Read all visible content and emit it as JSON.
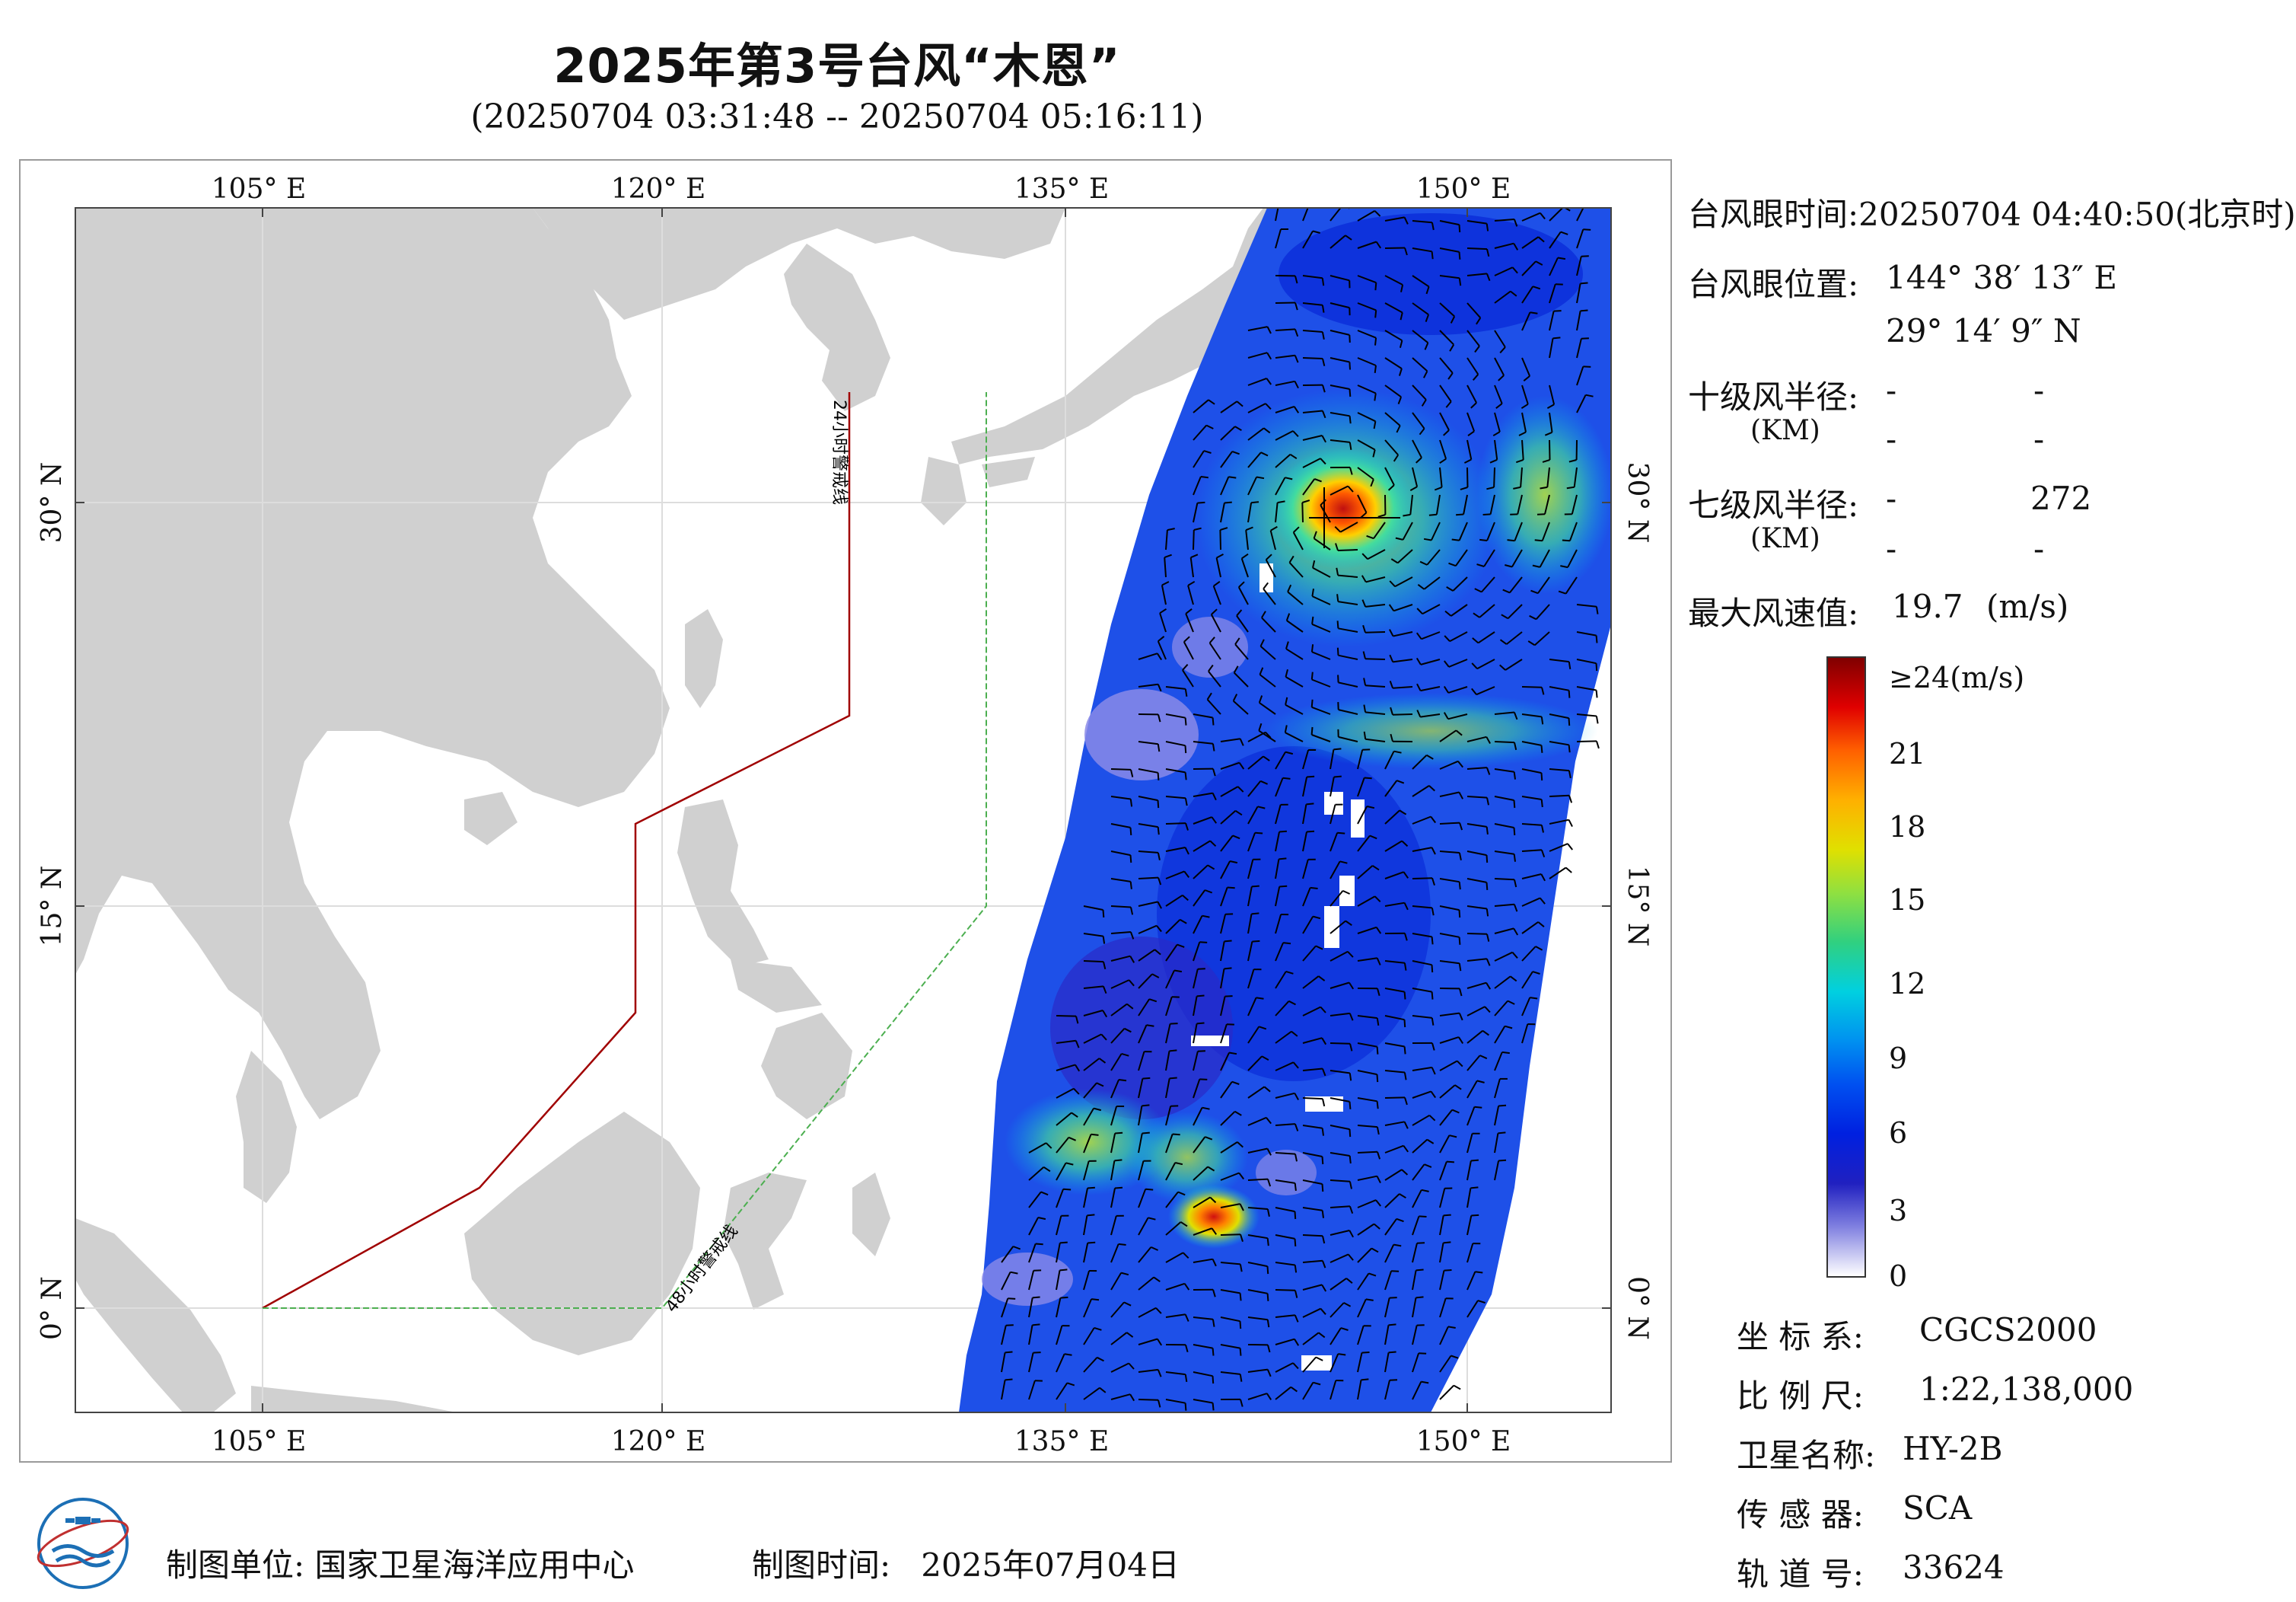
{
  "header": {
    "title": "2025年第3号台风“木恩”",
    "subtitle": "(20250704 03:31:48 -- 20250704 05:16:11)"
  },
  "map": {
    "lon_labels": [
      "105° E",
      "120° E",
      "135° E",
      "150° E"
    ],
    "lat_labels": [
      "30° N",
      "15° N",
      "0° N"
    ],
    "warning_24h_label": "24小时警戒线",
    "warning_48h_label": "48小时警戒线",
    "colors": {
      "land": "#d0d0d0",
      "sea": "#ffffff",
      "warning_24h": "#a00000",
      "warning_48h": "#4caf50",
      "grid": "#dddddd"
    }
  },
  "info": {
    "eye_time_label": "台风眼时间:",
    "eye_time_value": "20250704 04:40:50(北京时)",
    "eye_pos_label": "台风眼位置:",
    "eye_lon": "144° 38′ 13″ E",
    "eye_lat": "29° 14′ 9″ N",
    "r10_label": "十级风半径:",
    "r10_unit": "(KM)",
    "r10_values": [
      "-",
      "-",
      "-",
      "-"
    ],
    "r7_label": "七级风半径:",
    "r7_unit": "(KM)",
    "r7_values": [
      "-",
      "272",
      "-",
      "-"
    ],
    "max_wind_label": "最大风速值:",
    "max_wind_value": "19.7",
    "max_wind_unit": "(m/s)"
  },
  "colorbar": {
    "top_label": "≥24(m/s)",
    "ticks": [
      "21",
      "18",
      "15",
      "12",
      "9",
      "6",
      "3",
      "0"
    ],
    "colors": [
      "#800000",
      "#e00000",
      "#ff6000",
      "#ffb000",
      "#e0e000",
      "#90e040",
      "#30d080",
      "#00d0e0",
      "#0090f0",
      "#0050f0",
      "#0020e0",
      "#2020c0",
      "#8080e0",
      "#ffffff"
    ]
  },
  "meta_bottom": {
    "crs_label": "坐 标 系:",
    "crs_value": "CGCS2000",
    "scale_label": "比 例 尺:",
    "scale_value": "1:22,138,000",
    "satellite_label": "卫星名称:",
    "satellite_value": "HY-2B",
    "sensor_label": "传 感 器:",
    "sensor_value": "SCA",
    "orbit_label": "轨 道 号:",
    "orbit_value": "33624"
  },
  "footer": {
    "maker_label": "制图单位:",
    "maker_value": "国家卫星海洋应用中心",
    "date_label": "制图时间:",
    "date_value": "2025年07月04日"
  }
}
